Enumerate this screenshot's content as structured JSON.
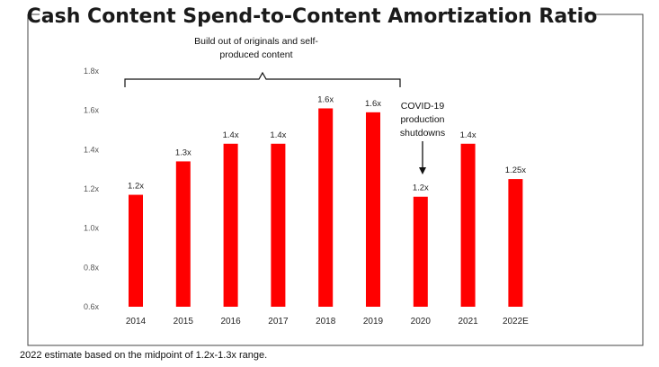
{
  "chart_data": {
    "type": "bar",
    "title": "Cash Content Spend-to-Content Amortization Ratio",
    "categories": [
      "2014",
      "2015",
      "2016",
      "2017",
      "2018",
      "2019",
      "2020",
      "2021",
      "2022E"
    ],
    "values": [
      1.17,
      1.34,
      1.43,
      1.43,
      1.61,
      1.59,
      1.16,
      1.43,
      1.25
    ],
    "data_labels": [
      "1.2x",
      "1.3x",
      "1.4x",
      "1.4x",
      "1.6x",
      "1.6x",
      "1.2x",
      "1.4x",
      "1.25x"
    ],
    "ylim": [
      0.6,
      1.8
    ],
    "y_ticks": [
      "0.6x",
      "0.8x",
      "1.0x",
      "1.2x",
      "1.4x",
      "1.6x",
      "1.8x"
    ],
    "xlabel": "",
    "ylabel": "",
    "bar_color": "#ff0000",
    "grid": false,
    "annotations": {
      "bracket": {
        "line1": "Build out of originals and self-",
        "line2": "produced content",
        "from_category": "2014",
        "to_category": "2019"
      },
      "arrow": {
        "line1": "COVID-19",
        "line2": "production",
        "line3": "shutdowns",
        "target_category": "2020"
      }
    }
  },
  "footnote": "2022 estimate based on the midpoint of 1.2x-1.3x range."
}
